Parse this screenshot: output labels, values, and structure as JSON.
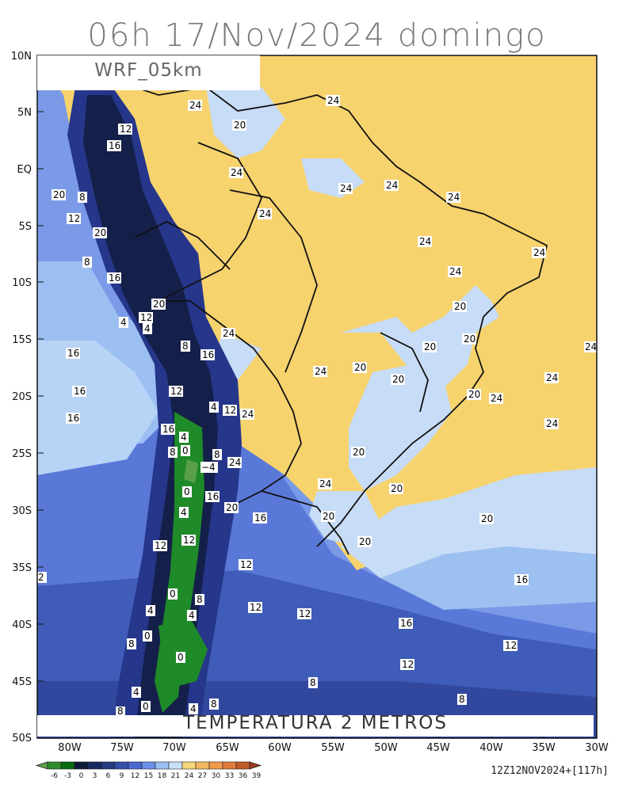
{
  "title": "06h 17/Nov/2024 domingo",
  "model": "WRF_05km",
  "variable": "TEMPERATURA 2 METROS",
  "run_info": "12Z12NOV2024+[117h]",
  "lat_labels": [
    "10N",
    "5N",
    "EQ",
    "5S",
    "10S",
    "15S",
    "20S",
    "25S",
    "30S",
    "35S",
    "40S",
    "45S",
    "50S"
  ],
  "lon_labels": [
    "80W",
    "75W",
    "70W",
    "65W",
    "60W",
    "55W",
    "50W",
    "45W",
    "40W",
    "35W",
    "30W"
  ],
  "colorbar": {
    "ticks": [
      "-6",
      "-3",
      "0",
      "3",
      "6",
      "9",
      "12",
      "15",
      "18",
      "21",
      "24",
      "27",
      "30",
      "33",
      "36",
      "39"
    ],
    "colors": [
      "#5aa04a",
      "#2f8a2a",
      "#0a6a12",
      "#0c1a3a",
      "#1a2860",
      "#243a80",
      "#3450a8",
      "#4a6ad0",
      "#6c90e8",
      "#9cc0f4",
      "#c8e0fa",
      "#f6d77a",
      "#f2b860",
      "#f09a4a",
      "#e07a3a",
      "#c05a2a",
      "#9a3c1c"
    ]
  },
  "contour_labels": [
    "24",
    "20",
    "12",
    "16",
    "8",
    "4",
    "0",
    "-4",
    "2"
  ],
  "colors": {
    "warm": "#f7d36e",
    "warm_light": "#f7e0a0",
    "cool_1": "#c7dcf6",
    "cool_2": "#9cc0f0",
    "cool_3": "#6c8fe6",
    "cool_4": "#4c6ad2",
    "cool_5": "#3a54b8",
    "cool_6": "#26368a",
    "cold": "#14204a",
    "green": "#1e8a28"
  }
}
